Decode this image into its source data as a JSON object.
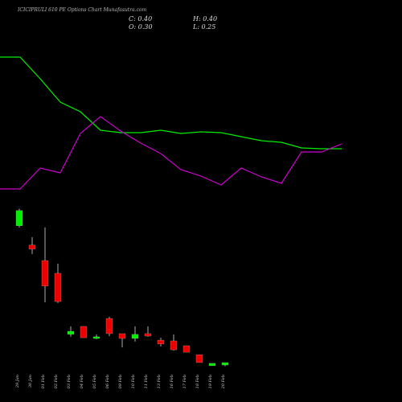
{
  "chart_data": [
    {
      "type": "candlestick",
      "title": "ICICIPRULI 610 PE Options Chart Munafasutra.com",
      "annotations": [
        "C: 0.40",
        "H: 0.40",
        "O: 0.30",
        "L: 0.25"
      ],
      "categories": [
        "29 Jan",
        "30 Jan",
        "01 Feb",
        "02 Feb",
        "03 Feb",
        "04 Feb",
        "05 Feb",
        "06 Feb",
        "09 Feb",
        "10 Feb",
        "11 Feb",
        "13 Feb",
        "16 Feb",
        "17 Feb",
        "18 Feb",
        "19 Feb",
        "20 Feb"
      ],
      "open": [
        6.07,
        5.27,
        4.63,
        4.1,
        1.57,
        1.9,
        1.4,
        2.23,
        1.6,
        1.4,
        1.6,
        1.33,
        1.3,
        1.1,
        0.73,
        0.27,
        0.3
      ],
      "high": [
        6.77,
        5.6,
        6.0,
        4.5,
        1.9,
        1.9,
        1.57,
        2.3,
        1.6,
        1.9,
        1.9,
        1.43,
        1.57,
        1.1,
        0.73,
        0.37,
        0.4
      ],
      "low": [
        6.0,
        4.9,
        2.9,
        2.87,
        1.47,
        1.43,
        1.37,
        1.5,
        1.03,
        1.27,
        1.47,
        1.07,
        0.9,
        0.83,
        0.4,
        0.27,
        0.25
      ],
      "close": [
        6.7,
        5.1,
        3.57,
        2.93,
        1.7,
        1.43,
        1.47,
        1.6,
        1.4,
        1.57,
        1.5,
        1.17,
        0.93,
        0.83,
        0.4,
        0.37,
        0.4
      ],
      "up_color": "#00ee00",
      "down_color": "#ee0000",
      "ylim": [
        0,
        6.93
      ]
    },
    {
      "type": "line",
      "categories": [
        null,
        null,
        null,
        null,
        null,
        null,
        null,
        null,
        null,
        null,
        null,
        null,
        null,
        null,
        null,
        null,
        null,
        null
      ],
      "series": [
        {
          "color": "#00ee00",
          "values": [
            179,
            179,
            152,
            123,
            111,
            88,
            85,
            85,
            88,
            84,
            86,
            85,
            80,
            75,
            73,
            66,
            65,
            65
          ]
        },
        {
          "color": "#cc00cc",
          "values": [
            15,
            15,
            41,
            35,
            84,
            105,
            87,
            72,
            59,
            39,
            31,
            20,
            41,
            30,
            22,
            61,
            61,
            71
          ]
        }
      ],
      "ylim": [
        0,
        200
      ]
    }
  ]
}
